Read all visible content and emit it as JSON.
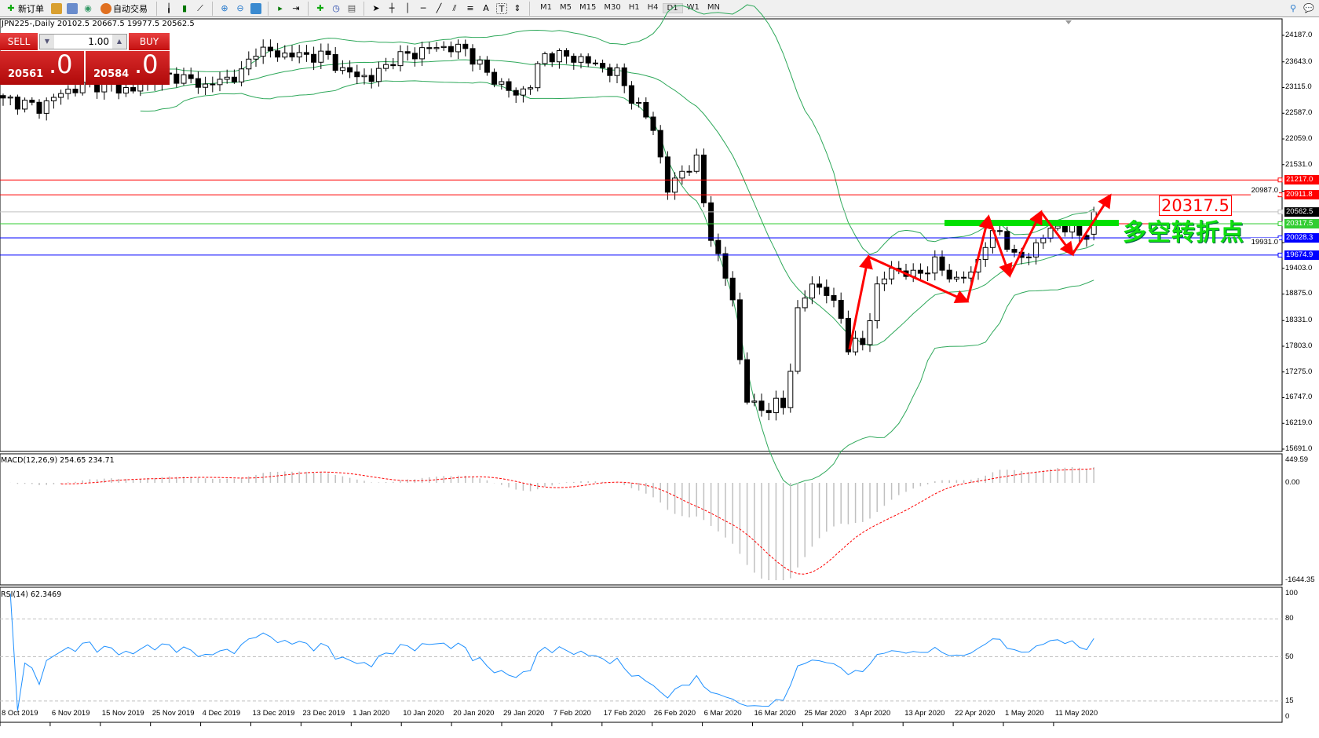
{
  "toolbar": {
    "new_order": "新订单",
    "auto_trading": "自动交易",
    "icons": [
      "new-order-icon",
      "history-icon",
      "market-watch-icon",
      "signal-icon",
      "auto-trading-icon",
      "bar-chart-icon",
      "candlestick-icon",
      "line-chart-icon",
      "zoom-in-icon",
      "zoom-out-icon",
      "tile-windows-icon",
      "auto-scroll-icon",
      "chart-shift-icon",
      "indicators-icon",
      "periods-icon",
      "templates-icon",
      "cursor-icon",
      "crosshair-icon",
      "vertical-line-icon",
      "horizontal-line-icon",
      "trendline-icon",
      "equidistant-channel-icon",
      "fibonacci-icon",
      "text-icon",
      "text-label-icon",
      "arrows-icon",
      "search-icon",
      "chat-icon"
    ],
    "timeframes": [
      "M1",
      "M5",
      "M15",
      "M30",
      "H1",
      "H4",
      "D1",
      "W1",
      "MN"
    ],
    "active_timeframe": "D1",
    "text_tool": "A",
    "label_tool": "T"
  },
  "symbol_info": "JPN225-,Daily  20102.5 20667.5 19977.5 20562.5",
  "trade_panel": {
    "sell_label": "SELL",
    "buy_label": "BUY",
    "lot": "1.00",
    "sell_main": "20561",
    "sell_frac": ".0",
    "buy_main": "20584",
    "buy_frac": ".0"
  },
  "price_axis": [
    "24187.0",
    "23643.0",
    "23115.0",
    "22587.0",
    "22059.0",
    "21531.0",
    "20987.0",
    "19931.0",
    "19403.0",
    "18875.0",
    "18331.0",
    "17803.0",
    "17275.0",
    "16747.0",
    "16219.0",
    "15691.0"
  ],
  "hlines": [
    {
      "price": 21217.0,
      "label": "21217.0",
      "color": "#ff0000",
      "label_bg": "#ff0000"
    },
    {
      "price": 20911.8,
      "label": "20911.8",
      "color": "#ff0000",
      "label_bg": "#ff0000"
    },
    {
      "price": 20562.5,
      "label": "20562.5",
      "color": "#c0c0c0",
      "label_bg": "#000000"
    },
    {
      "price": 20317.5,
      "label": "20317.5",
      "color": "#32cd32",
      "label_bg": "#32cd32"
    },
    {
      "price": 20028.3,
      "label": "20028.3",
      "color": "#0000ff",
      "label_bg": "#0000ff"
    },
    {
      "price": 19674.9,
      "label": "19674.9",
      "color": "#0000ff",
      "label_bg": "#0000ff"
    }
  ],
  "annotations": {
    "price_label": "20317.5",
    "text": "多空转折点",
    "arrow_color": "#ff0000",
    "zone_color": "#00e000"
  },
  "chart_data": {
    "type": "candlestick",
    "symbol": "JPN225-",
    "timeframe": "Daily",
    "last_ohlc": {
      "open": 20102.5,
      "high": 20667.5,
      "low": 19977.5,
      "close": 20562.5
    },
    "y_range": [
      15691.0,
      24187.0
    ],
    "approx_close_path": [
      [
        0,
        22900
      ],
      [
        5,
        22700
      ],
      [
        8,
        23000
      ],
      [
        12,
        23200
      ],
      [
        18,
        23050
      ],
      [
        20,
        23300
      ],
      [
        24,
        23350
      ],
      [
        28,
        23150
      ],
      [
        33,
        23400
      ],
      [
        35,
        23900
      ],
      [
        38,
        23800
      ],
      [
        45,
        23750
      ],
      [
        47,
        23450
      ],
      [
        51,
        23300
      ],
      [
        54,
        23700
      ],
      [
        60,
        23950
      ],
      [
        64,
        23900
      ],
      [
        67,
        23400
      ],
      [
        71,
        22950
      ],
      [
        73,
        23200
      ],
      [
        75,
        23800
      ],
      [
        80,
        23700
      ],
      [
        85,
        23400
      ],
      [
        86,
        23150
      ],
      [
        88,
        22700
      ],
      [
        90,
        22300
      ],
      [
        92,
        21000
      ],
      [
        94,
        21400
      ],
      [
        96,
        21600
      ],
      [
        97,
        20750
      ],
      [
        98,
        20100
      ],
      [
        99,
        19600
      ],
      [
        101,
        18800
      ],
      [
        102,
        17500
      ],
      [
        103,
        16700
      ],
      [
        105,
        16500
      ],
      [
        107,
        16600
      ],
      [
        108,
        16550
      ],
      [
        109,
        17400
      ],
      [
        110,
        18500
      ],
      [
        112,
        19100
      ],
      [
        114,
        18900
      ],
      [
        116,
        18400
      ],
      [
        117,
        17800
      ],
      [
        119,
        17850
      ],
      [
        121,
        19000
      ],
      [
        123,
        19400
      ],
      [
        126,
        19250
      ],
      [
        129,
        19500
      ],
      [
        132,
        19150
      ],
      [
        134,
        19300
      ],
      [
        136,
        19900
      ],
      [
        138,
        20200
      ],
      [
        140,
        19600
      ],
      [
        142,
        19700
      ],
      [
        144,
        20050
      ],
      [
        146,
        20300
      ],
      [
        148,
        20150
      ],
      [
        150,
        20100
      ],
      [
        151,
        20562.5
      ]
    ],
    "bollinger_color": "#2ea85a",
    "dates": [
      "8 Oct 2019",
      "6 Nov 2019",
      "15 Nov 2019",
      "25 Nov 2019",
      "4 Dec 2019",
      "13 Dec 2019",
      "23 Dec 2019",
      "1 Jan 2020",
      "10 Jan 2020",
      "20 Jan 2020",
      "29 Jan 2020",
      "7 Feb 2020",
      "17 Feb 2020",
      "26 Feb 2020",
      "6 Mar 2020",
      "16 Mar 2020",
      "25 Mar 2020",
      "3 Apr 2020",
      "13 Apr 2020",
      "22 Apr 2020",
      "1 May 2020",
      "11 May 2020"
    ]
  },
  "macd": {
    "title": "MACD(12,26,9) 254.65 234.71",
    "axis": [
      "449.59",
      "0.00",
      "-1644.35"
    ],
    "max": 449.59,
    "min": -1644.35,
    "signal_color": "#ff0000",
    "hist_color": "#c0c0c0"
  },
  "rsi": {
    "title": "RSI(14) 62.3469",
    "axis": [
      "100",
      "80",
      "50",
      "15",
      "0"
    ],
    "levels": [
      80,
      50,
      15
    ],
    "color": "#1e90ff"
  }
}
